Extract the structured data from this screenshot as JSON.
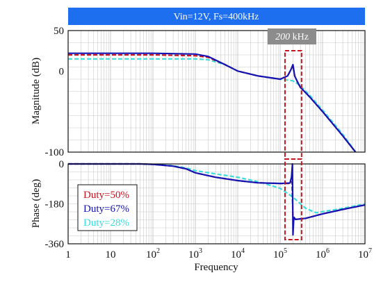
{
  "title": "Vin=12V, Fs=400kHz",
  "annotation": {
    "prefix": "200",
    "suffix": " kHz"
  },
  "colors": {
    "title_bar": "#1e6ff0",
    "annotation_box": "#8c8c8c",
    "highlight_box": "#c8141e",
    "grid": "#c8c8c8"
  },
  "chart_data": [
    {
      "type": "line",
      "panel": "magnitude",
      "xlabel": "",
      "ylabel": "Magnitude (dB)",
      "xscale": "log",
      "xlim": [
        1,
        10000000
      ],
      "ylim": [
        -100,
        50
      ],
      "yticks": [
        "50",
        "0",
        "-100"
      ],
      "grid": true,
      "series": [
        {
          "name": "Duty=50%",
          "color": "#c8141e",
          "dash": "dashed",
          "x": [
            1,
            10,
            100,
            1000,
            2000,
            5000,
            10000,
            30000,
            100000,
            150000,
            180000,
            200000,
            220000,
            260000,
            300000,
            500000,
            1000000,
            3000000,
            6000000
          ],
          "y": [
            20,
            20,
            20,
            19,
            17,
            8,
            0,
            -6,
            -10,
            -6,
            2,
            7,
            -6,
            -14,
            -20,
            -32,
            -50,
            -80,
            -100
          ]
        },
        {
          "name": "Duty=67%",
          "color": "#1414b4",
          "dash": "solid",
          "x": [
            1,
            10,
            100,
            1000,
            2000,
            5000,
            10000,
            30000,
            100000,
            150000,
            180000,
            200000,
            220000,
            260000,
            300000,
            500000,
            1000000,
            3000000,
            6000000
          ],
          "y": [
            22,
            22,
            22,
            21,
            18,
            8,
            0,
            -6,
            -10,
            -6,
            2,
            8,
            -6,
            -14,
            -20,
            -32,
            -50,
            -80,
            -100
          ]
        },
        {
          "name": "Duty=28%",
          "color": "#3cdcdc",
          "dash": "dashed",
          "x": [
            1,
            10,
            100,
            1000,
            2000,
            5000,
            10000,
            30000,
            100000,
            200000,
            300000,
            500000,
            1000000,
            3000000,
            6000000
          ],
          "y": [
            15,
            15,
            15,
            15,
            14,
            8,
            0,
            -6,
            -10,
            -12,
            -18,
            -30,
            -48,
            -78,
            -100
          ]
        }
      ]
    },
    {
      "type": "line",
      "panel": "phase",
      "xlabel": "Frequency",
      "ylabel": "Phase (deg)",
      "xscale": "log",
      "xlim": [
        1,
        10000000
      ],
      "ylim": [
        -360,
        0
      ],
      "yticks": [
        "0",
        "-180",
        "-360"
      ],
      "xticks": [
        {
          "base": "1",
          "exp": ""
        },
        {
          "base": "10",
          "exp": ""
        },
        {
          "base": "10",
          "exp": "2"
        },
        {
          "base": "10",
          "exp": "3"
        },
        {
          "base": "10",
          "exp": "4"
        },
        {
          "base": "10",
          "exp": "5"
        },
        {
          "base": "10",
          "exp": "6"
        },
        {
          "base": "10",
          "exp": "7"
        }
      ],
      "grid": true,
      "legend_position": "bottom-left",
      "series": [
        {
          "name": "Duty=50%",
          "color": "#c8141e",
          "dash": "dashed",
          "x": [
            1,
            50,
            100,
            300,
            600,
            1000,
            3000,
            10000,
            30000,
            100000,
            170000,
            190000,
            200000,
            230000,
            400000,
            1000000,
            3000000,
            10000000
          ],
          "y": [
            0,
            0,
            -2,
            -10,
            -22,
            -40,
            -60,
            -75,
            -85,
            -88,
            -88,
            -80,
            -240,
            -250,
            -245,
            -225,
            -205,
            -185
          ]
        },
        {
          "name": "Duty=67%",
          "color": "#1414b4",
          "dash": "solid",
          "x": [
            1,
            50,
            100,
            300,
            600,
            1000,
            3000,
            10000,
            30000,
            100000,
            170000,
            185000,
            195000,
            200000,
            210000,
            230000,
            400000,
            1000000,
            3000000,
            10000000
          ],
          "y": [
            0,
            0,
            -2,
            -10,
            -22,
            -40,
            -60,
            -75,
            -85,
            -88,
            -86,
            -60,
            0,
            -320,
            -240,
            -250,
            -245,
            -225,
            -205,
            -185
          ]
        },
        {
          "name": "Duty=28%",
          "color": "#3cdcdc",
          "dash": "dashed",
          "x": [
            1,
            50,
            100,
            300,
            600,
            1000,
            3000,
            10000,
            30000,
            100000,
            200000,
            400000,
            700000,
            1000000,
            3000000,
            10000000
          ],
          "y": [
            0,
            0,
            -2,
            -8,
            -18,
            -30,
            -45,
            -60,
            -80,
            -110,
            -150,
            -200,
            -220,
            -215,
            -200,
            -180
          ]
        }
      ]
    }
  ]
}
